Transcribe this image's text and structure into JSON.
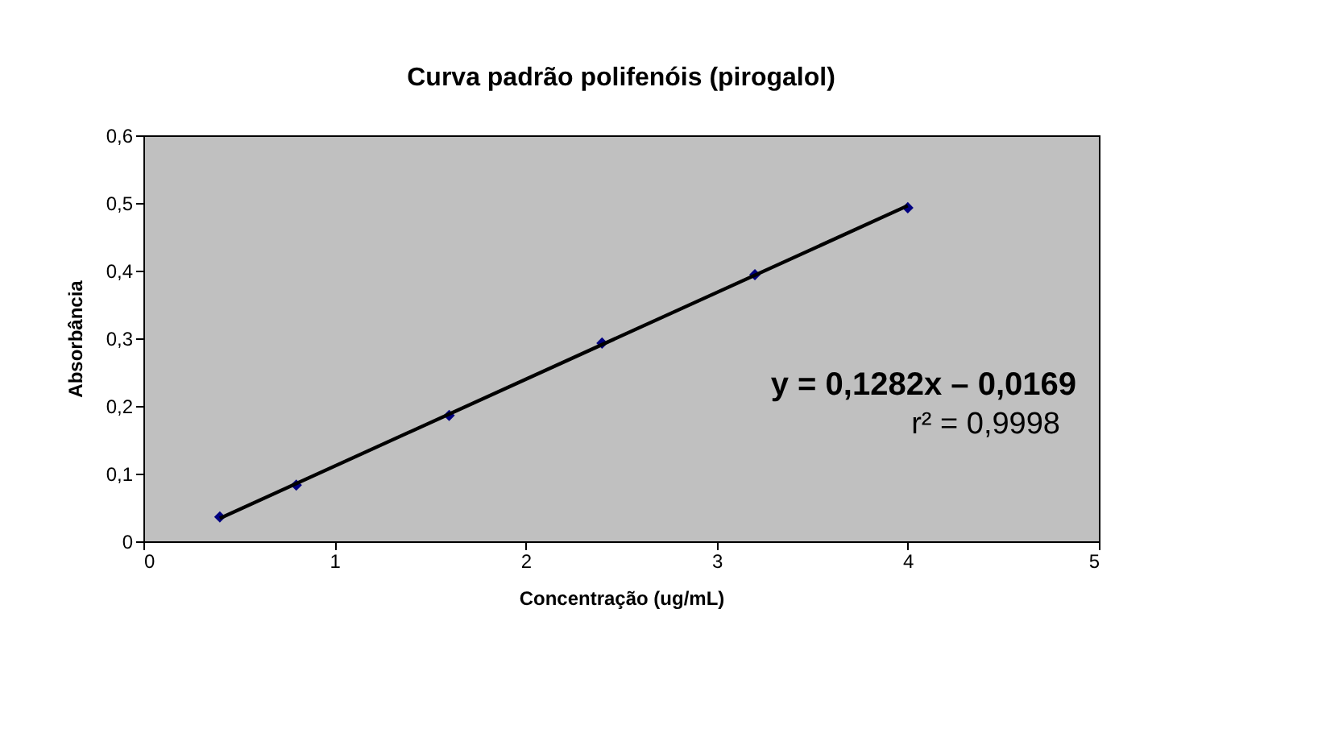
{
  "chart_data": {
    "type": "scatter",
    "title": "Curva padrão polifenóis (pirogalol)",
    "xlabel": "Concentração (ug/mL)",
    "ylabel": "Absorbância",
    "series": [
      {
        "color": "#000080",
        "marker": "diamond",
        "x": [
          0.4,
          0.8,
          1.6,
          2.4,
          3.2,
          4.0
        ],
        "values": [
          0.036,
          0.083,
          0.186,
          0.293,
          0.394,
          0.493
        ]
      },
      {
        "type": "line",
        "color": "#000000",
        "line_style": "solid",
        "marker": "none",
        "x": [
          0.4,
          4.0
        ],
        "values": [
          0.034,
          0.496
        ]
      }
    ],
    "xlim": [
      0,
      5
    ],
    "xticks": [
      0,
      1,
      2,
      3,
      4,
      5
    ],
    "ylim": [
      0,
      0.6
    ],
    "yticks": [
      0,
      {
        "value": 0.1,
        "label": "0,1"
      },
      {
        "value": 0.2,
        "label": "0,2"
      },
      {
        "value": 0.3,
        "label": "0,3"
      },
      {
        "value": 0.4,
        "label": "0,4"
      },
      {
        "value": 0.5,
        "label": "0,5"
      },
      {
        "value": 0.6,
        "label": "0,6"
      }
    ],
    "annotations": [
      "y = 0,1282x – 0,0169",
      "r² = 0,9998"
    ],
    "grid": false
  }
}
